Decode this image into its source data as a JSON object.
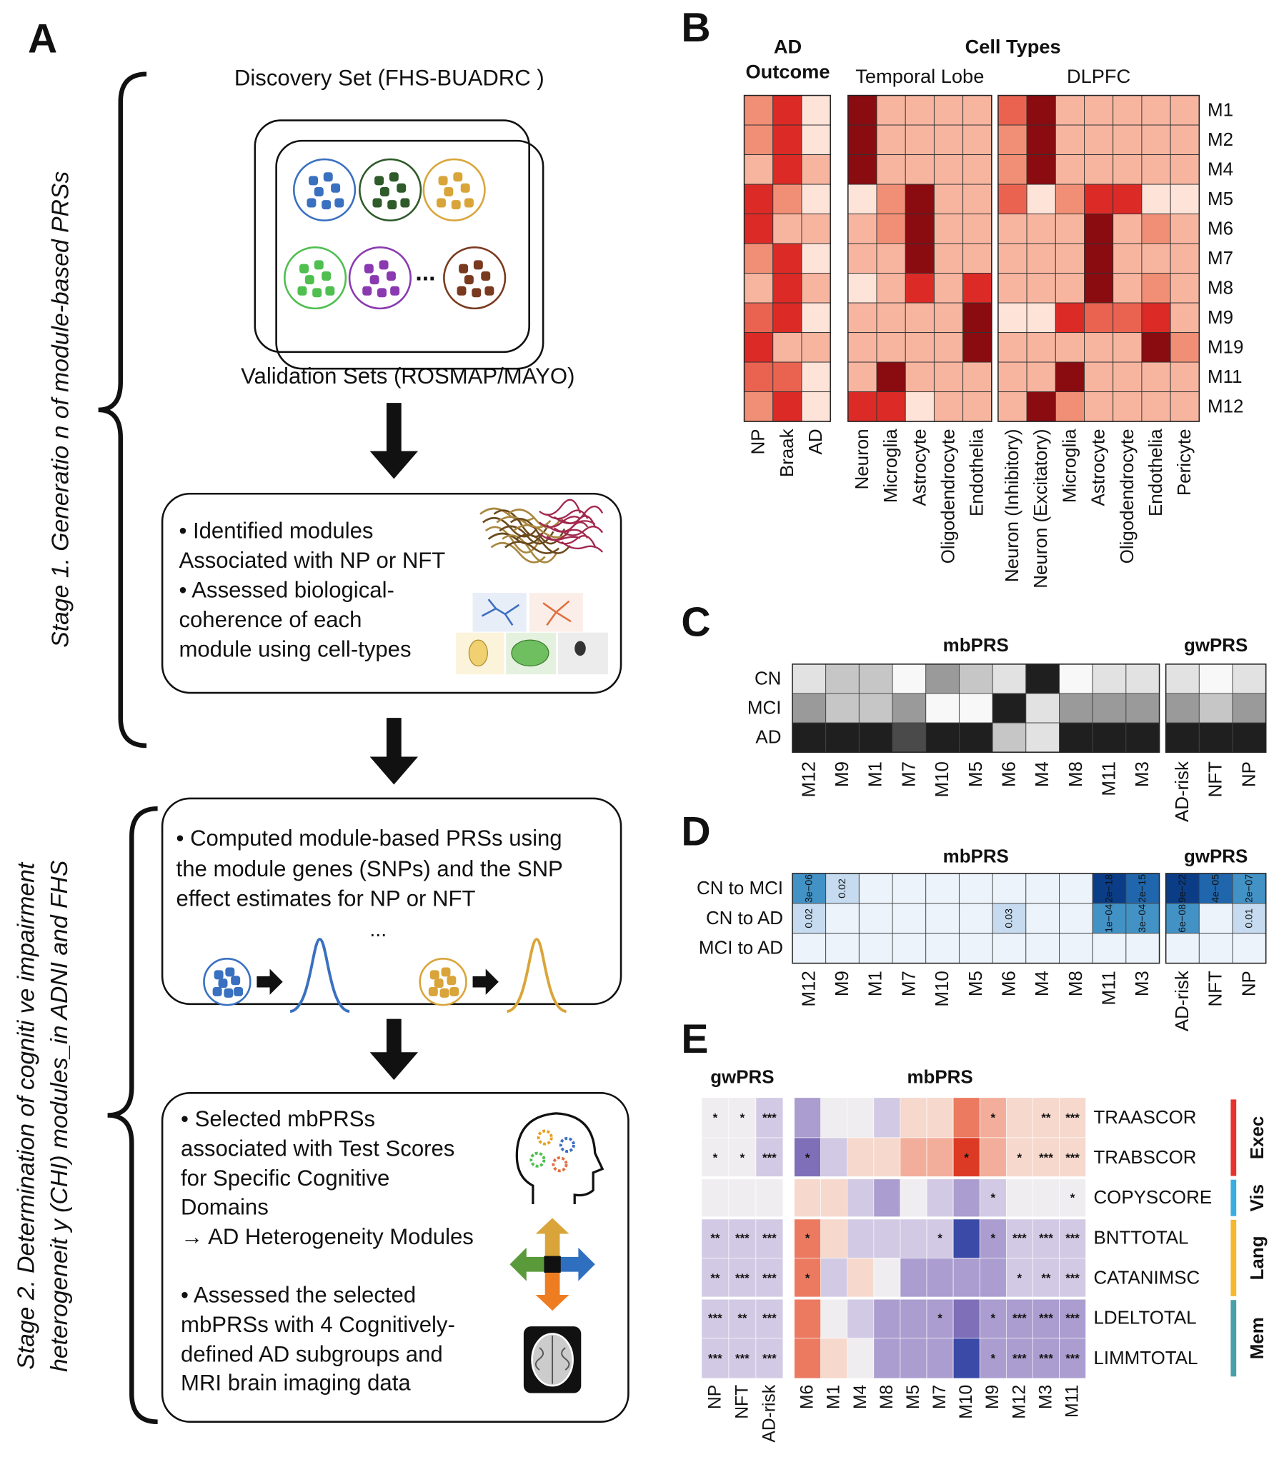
{
  "panel_a": {
    "label": "A",
    "stage1": "Stage 1. Generatio n of module-based  PRSs",
    "discovery": "Discovery Set  (FHS-BUADRC )",
    "module_dots": "...",
    "validation": "Validation Sets (ROSMAP/MAYO)",
    "box1": [
      "• Identified modules",
      "Associated with NP or NFT",
      "• Assessed biological-",
      "coherence of each",
      "module using cell-types"
    ],
    "box2": [
      "• Computed module-based PRSs using",
      "the module genes (SNPs) and the SNP",
      "effect estimates for NP or NFT"
    ],
    "prs_dots": "...",
    "box3": [
      "• Selected mbPRSs",
      "associated with Test Scores",
      "for Specific Cognitive",
      "Domains",
      "→ AD Heterogeneity Modules",
      "• Assessed the selected",
      "mbPRSs with 4 Cognitively-",
      "defined AD subgroups and",
      "MRI brain imaging data"
    ],
    "stage2": [
      "Stage 2. Determination  of cogniti ve impairment",
      "heterogeneit y (CHI) modules_in ADNI and FHS"
    ]
  },
  "panel_b": {
    "label": "B",
    "headers": {
      "outcome": [
        "AD",
        "Outcome"
      ],
      "cell_types": "Cell Types"
    },
    "rows": [
      "M1",
      "M2",
      "M4",
      "M5",
      "M6",
      "M7",
      "M8",
      "M9",
      "M19",
      "M11",
      "M12"
    ],
    "palette": [
      "#fde3d8",
      "#f7b5a0",
      "#f18f76",
      "#ea6351",
      "#dc2b27",
      "#8a0b10"
    ],
    "groups": [
      {
        "columns": [
          "NP",
          "Braak",
          "AD"
        ],
        "values": [
          [
            2,
            4,
            0
          ],
          [
            2,
            4,
            0
          ],
          [
            1,
            4,
            1
          ],
          [
            4,
            2,
            0
          ],
          [
            4,
            1,
            1
          ],
          [
            2,
            4,
            0
          ],
          [
            1,
            4,
            1
          ],
          [
            3,
            4,
            0
          ],
          [
            4,
            1,
            1
          ],
          [
            3,
            3,
            0
          ],
          [
            2,
            4,
            0
          ]
        ]
      },
      {
        "title": "Temporal Lobe",
        "columns": [
          "Neuron",
          "Microglia",
          "Astrocyte",
          "Oligodendrocyte",
          "Endothelia"
        ],
        "values": [
          [
            5,
            1,
            1,
            1,
            1
          ],
          [
            5,
            1,
            1,
            1,
            1
          ],
          [
            5,
            1,
            1,
            1,
            1
          ],
          [
            0,
            2,
            5,
            1,
            1
          ],
          [
            1,
            2,
            5,
            1,
            1
          ],
          [
            1,
            1,
            5,
            1,
            1
          ],
          [
            0,
            1,
            4,
            1,
            4
          ],
          [
            1,
            1,
            1,
            1,
            5
          ],
          [
            1,
            1,
            1,
            1,
            5
          ],
          [
            1,
            5,
            1,
            1,
            1
          ],
          [
            4,
            4,
            0,
            1,
            1
          ]
        ]
      },
      {
        "title": "DLPFC",
        "columns": [
          "Neuron (Inhibitory)",
          "Neuron (Excitatory)",
          "Microglia",
          "Astrocyte",
          "Oligodendrocyte",
          "Endothelia",
          "Pericyte"
        ],
        "values": [
          [
            3,
            5,
            1,
            1,
            1,
            1,
            1
          ],
          [
            2,
            5,
            1,
            1,
            1,
            1,
            1
          ],
          [
            2,
            5,
            1,
            1,
            1,
            1,
            1
          ],
          [
            3,
            0,
            2,
            4,
            4,
            0,
            0
          ],
          [
            1,
            1,
            1,
            5,
            1,
            2,
            1
          ],
          [
            1,
            1,
            1,
            5,
            1,
            1,
            1
          ],
          [
            1,
            1,
            1,
            5,
            1,
            2,
            1
          ],
          [
            0,
            0,
            4,
            3,
            3,
            4,
            1
          ],
          [
            1,
            1,
            1,
            1,
            1,
            5,
            2
          ],
          [
            1,
            1,
            5,
            1,
            1,
            1,
            1
          ],
          [
            1,
            5,
            2,
            1,
            1,
            1,
            1
          ]
        ]
      }
    ]
  },
  "panel_c": {
    "label": "C",
    "rows": [
      "CN",
      "MCI",
      "AD"
    ],
    "palette": [
      "#f8f8f8",
      "#e2e2e2",
      "#c6c6c6",
      "#9a9a9a",
      "#4a4a4a",
      "#1f1f1f"
    ],
    "groups": [
      {
        "title": "mbPRS",
        "columns": [
          "M12",
          "M9",
          "M1",
          "M7",
          "M10",
          "M5",
          "M6",
          "M4",
          "M8",
          "M11",
          "M3"
        ],
        "values": [
          [
            1,
            2,
            2,
            0,
            3,
            2,
            1,
            5,
            0,
            1,
            1
          ],
          [
            3,
            2,
            2,
            3,
            0,
            0,
            5,
            1,
            3,
            3,
            3
          ],
          [
            5,
            5,
            5,
            4,
            5,
            5,
            2,
            1,
            5,
            5,
            5
          ]
        ]
      },
      {
        "title": "gwPRS",
        "columns": [
          "AD-risk",
          "NFT",
          "NP"
        ],
        "values": [
          [
            1,
            0,
            1
          ],
          [
            3,
            2,
            3
          ],
          [
            5,
            5,
            5
          ]
        ]
      }
    ]
  },
  "panel_d": {
    "label": "D",
    "rows": [
      "CN to MCI",
      "CN to AD",
      "MCI to AD"
    ],
    "palette": [
      "#edf3fb",
      "#c6dbef",
      "#9ecae1",
      "#4292c6",
      "#2066ac",
      "#0b3d87"
    ],
    "groups": [
      {
        "title": "mbPRS",
        "columns": [
          "M12",
          "M9",
          "M1",
          "M7",
          "M10",
          "M5",
          "M6",
          "M4",
          "M8",
          "M11",
          "M3"
        ],
        "values": [
          [
            3,
            1,
            0,
            0,
            0,
            0,
            0,
            0,
            0,
            5,
            4
          ],
          [
            1,
            0,
            0,
            0,
            0,
            0,
            1,
            0,
            0,
            3,
            3
          ],
          [
            0,
            0,
            0,
            0,
            0,
            0,
            0,
            0,
            0,
            0,
            0
          ]
        ],
        "labels": [
          [
            "3e−06",
            "0.02",
            null,
            null,
            null,
            null,
            null,
            null,
            null,
            "2e−18",
            "2e−15"
          ],
          [
            "0.02",
            null,
            null,
            null,
            null,
            null,
            "0.03",
            null,
            null,
            "1e−04",
            "3e−04"
          ],
          [
            null,
            null,
            null,
            null,
            null,
            null,
            null,
            null,
            null,
            null,
            null
          ]
        ]
      },
      {
        "title": "gwPRS",
        "columns": [
          "AD-risk",
          "NFT",
          "NP"
        ],
        "values": [
          [
            5,
            4,
            3
          ],
          [
            3,
            0,
            1
          ],
          [
            0,
            0,
            0
          ]
        ],
        "labels": [
          [
            "9e−22",
            "4e−05",
            "2e−07"
          ],
          [
            "6e−08",
            null,
            "0.01"
          ],
          [
            null,
            null,
            null
          ]
        ]
      }
    ]
  },
  "panel_e": {
    "label": "E",
    "palette": [
      "#3a4aa6",
      "#7e6fb8",
      "#ab9dcf",
      "#d2cae4",
      "#efedf0",
      "#f6d8cd",
      "#f3ae9b",
      "#ec7a60",
      "#dc3a24"
    ],
    "groups": [
      {
        "title": "gwPRS",
        "columns": [
          "NP",
          "NFT",
          "AD-risk"
        ]
      },
      {
        "title": "mbPRS",
        "columns": [
          "M6",
          "M1",
          "M4",
          "M8",
          "M5",
          "M7",
          "M10",
          "M9",
          "M12",
          "M3",
          "M11"
        ]
      }
    ],
    "domains": [
      {
        "name": "Exec",
        "color": "#e8322e",
        "rows": [
          {
            "name": "TRAASCOR",
            "values": [
              [
                0,
                0,
                -1
              ],
              [
                -2,
                0,
                0,
                -1,
                1,
                1,
                3,
                2,
                1,
                1,
                1
              ]
            ],
            "stars": [
              [
                "*",
                "*",
                "***"
              ],
              [
                null,
                null,
                null,
                null,
                null,
                null,
                null,
                "*",
                null,
                "**",
                "***"
              ]
            ]
          },
          {
            "name": "TRABSCOR",
            "values": [
              [
                0,
                0,
                -1
              ],
              [
                -3,
                -1,
                1,
                1,
                2,
                2,
                4,
                2,
                1,
                1,
                1
              ]
            ],
            "stars": [
              [
                "*",
                "*",
                "***"
              ],
              [
                "*",
                null,
                null,
                null,
                null,
                null,
                "*",
                null,
                "*",
                "***",
                "***"
              ]
            ]
          }
        ]
      },
      {
        "name": "Vis",
        "color": "#3aaee0",
        "rows": [
          {
            "name": "COPYSCORE",
            "values": [
              [
                0,
                0,
                0
              ],
              [
                1,
                1,
                -1,
                -2,
                0,
                -1,
                -2,
                -1,
                0,
                0,
                0
              ]
            ],
            "stars": [
              [
                null,
                null,
                null
              ],
              [
                null,
                null,
                null,
                null,
                null,
                null,
                null,
                "*",
                null,
                null,
                "*"
              ]
            ]
          }
        ]
      },
      {
        "name": "Lang",
        "color": "#f5b82e",
        "rows": [
          {
            "name": "BNTTOTAL",
            "values": [
              [
                -1,
                -1,
                -1
              ],
              [
                3,
                1,
                -1,
                -1,
                -1,
                -1,
                -4,
                -2,
                -1,
                -1,
                -1
              ]
            ],
            "stars": [
              [
                "**",
                "***",
                "***"
              ],
              [
                "*",
                null,
                null,
                null,
                null,
                "*",
                null,
                "*",
                "***",
                "***",
                "***"
              ]
            ]
          },
          {
            "name": "CATANIMSC",
            "values": [
              [
                -1,
                -1,
                -1
              ],
              [
                3,
                -1,
                1,
                0,
                -2,
                -2,
                -2,
                -2,
                -1,
                -1,
                -1
              ]
            ],
            "stars": [
              [
                "**",
                "***",
                "***"
              ],
              [
                "*",
                null,
                null,
                null,
                null,
                null,
                null,
                null,
                "*",
                "**",
                "***"
              ]
            ]
          }
        ]
      },
      {
        "name": "Mem",
        "color": "#4aa0a8",
        "rows": [
          {
            "name": "LDELTOTAL",
            "values": [
              [
                -1,
                -1,
                -1
              ],
              [
                3,
                0,
                -1,
                -2,
                -2,
                -2,
                -3,
                -2,
                -2,
                -2,
                -2
              ]
            ],
            "stars": [
              [
                "***",
                "**",
                "***"
              ],
              [
                null,
                null,
                null,
                null,
                null,
                "*",
                null,
                "*",
                "***",
                "***",
                "***"
              ]
            ]
          },
          {
            "name": "LIMMTOTAL",
            "values": [
              [
                -1,
                -1,
                -1
              ],
              [
                3,
                1,
                0,
                -2,
                -2,
                -2,
                -4,
                -2,
                -2,
                -2,
                -2
              ]
            ],
            "stars": [
              [
                "***",
                "***",
                "***"
              ],
              [
                null,
                null,
                null,
                null,
                null,
                null,
                null,
                "*",
                "***",
                "***",
                "***"
              ]
            ]
          }
        ]
      }
    ]
  }
}
